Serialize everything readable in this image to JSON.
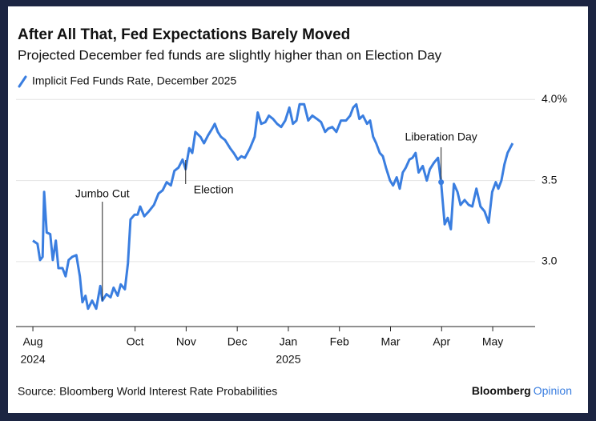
{
  "chart_data": {
    "type": "line",
    "title": "After All That, Fed Expectations Barely Moved",
    "subtitle": "Projected December fed funds are slightly higher than on Election Day",
    "source": "Source: Bloomberg World Interest Rate Probabilities",
    "brand": "Bloomberg",
    "brand_suffix": "Opinion",
    "xlim": [
      -0.33,
      9.83
    ],
    "xticks": [
      {
        "value": 0,
        "label": "Aug"
      },
      {
        "value": 2,
        "label": "Oct"
      },
      {
        "value": 3,
        "label": "Nov"
      },
      {
        "value": 4,
        "label": "Dec"
      },
      {
        "value": 5,
        "label": "Jan"
      },
      {
        "value": 6,
        "label": "Feb"
      },
      {
        "value": 7,
        "label": "Mar"
      },
      {
        "value": 8,
        "label": "Apr"
      },
      {
        "value": 9,
        "label": "May"
      }
    ],
    "x_year_labels": [
      {
        "value": 0,
        "label": "2024"
      },
      {
        "value": 5,
        "label": "2025"
      }
    ],
    "ylim": [
      2.6,
      4.1
    ],
    "yticks": [
      {
        "value": 3,
        "label": "3.0"
      },
      3.5,
      {
        "value": 4,
        "label": "4.0%"
      }
    ],
    "grid": true,
    "annotations": [
      {
        "label": "Jumbo Cut",
        "x": 1.36
      },
      {
        "label": "Election",
        "x": 2.99
      },
      {
        "label": "Liberation Day",
        "x": 7.99
      }
    ],
    "series": [
      {
        "name": "Implicit Fed Funds Rate, December 2025",
        "color": "#3a7ee0",
        "x": [
          0,
          0.09,
          0.14,
          0.19,
          0.22,
          0.27,
          0.34,
          0.39,
          0.45,
          0.5,
          0.58,
          0.64,
          0.7,
          0.77,
          0.85,
          0.92,
          0.97,
          1.03,
          1.08,
          1.16,
          1.24,
          1.32,
          1.36,
          1.44,
          1.52,
          1.58,
          1.66,
          1.72,
          1.8,
          1.86,
          1.91,
          1.99,
          2.05,
          2.1,
          2.18,
          2.27,
          2.37,
          2.46,
          2.54,
          2.62,
          2.7,
          2.77,
          2.85,
          2.93,
          2.99,
          3.06,
          3.12,
          3.18,
          3.28,
          3.35,
          3.43,
          3.51,
          3.56,
          3.62,
          3.68,
          3.76,
          3.86,
          3.93,
          4.01,
          4.08,
          4.15,
          4.25,
          4.34,
          4.4,
          4.47,
          4.55,
          4.62,
          4.7,
          4.78,
          4.86,
          4.94,
          5.02,
          5.09,
          5.16,
          5.22,
          5.31,
          5.39,
          5.47,
          5.56,
          5.64,
          5.72,
          5.78,
          5.86,
          5.94,
          6.03,
          6.13,
          6.21,
          6.27,
          6.33,
          6.39,
          6.46,
          6.54,
          6.6,
          6.66,
          6.72,
          6.79,
          6.85,
          6.91,
          6.99,
          7.05,
          7.12,
          7.18,
          7.24,
          7.3,
          7.37,
          7.43,
          7.49,
          7.55,
          7.63,
          7.71,
          7.77,
          7.85,
          7.93,
          7.99,
          8.06,
          8.12,
          8.18,
          8.24,
          8.31,
          8.37,
          8.45,
          8.53,
          8.6,
          8.68,
          8.76,
          8.84,
          8.92,
          8.99,
          9.06,
          9.11,
          9.17,
          9.23,
          9.29,
          9.39
        ],
        "values": [
          3.13,
          3.11,
          3.01,
          3.03,
          3.43,
          3.18,
          3.17,
          3.01,
          3.13,
          2.96,
          2.96,
          2.91,
          3.01,
          3.03,
          3.04,
          2.91,
          2.75,
          2.79,
          2.71,
          2.76,
          2.71,
          2.85,
          2.76,
          2.8,
          2.78,
          2.84,
          2.79,
          2.86,
          2.83,
          2.99,
          3.26,
          3.29,
          3.29,
          3.34,
          3.28,
          3.31,
          3.35,
          3.42,
          3.44,
          3.49,
          3.47,
          3.56,
          3.58,
          3.63,
          3.57,
          3.7,
          3.67,
          3.8,
          3.77,
          3.73,
          3.78,
          3.82,
          3.85,
          3.8,
          3.77,
          3.75,
          3.7,
          3.67,
          3.63,
          3.65,
          3.64,
          3.7,
          3.77,
          3.92,
          3.85,
          3.86,
          3.9,
          3.88,
          3.85,
          3.83,
          3.87,
          3.95,
          3.85,
          3.87,
          3.97,
          3.97,
          3.87,
          3.9,
          3.88,
          3.86,
          3.8,
          3.82,
          3.83,
          3.8,
          3.87,
          3.87,
          3.9,
          3.95,
          3.97,
          3.88,
          3.9,
          3.85,
          3.87,
          3.77,
          3.73,
          3.67,
          3.65,
          3.58,
          3.5,
          3.47,
          3.52,
          3.45,
          3.55,
          3.58,
          3.63,
          3.64,
          3.67,
          3.55,
          3.59,
          3.5,
          3.57,
          3.61,
          3.64,
          3.49,
          3.23,
          3.27,
          3.2,
          3.48,
          3.43,
          3.35,
          3.38,
          3.35,
          3.34,
          3.45,
          3.34,
          3.31,
          3.24,
          3.43,
          3.49,
          3.45,
          3.5,
          3.6,
          3.67,
          3.73
        ]
      }
    ]
  }
}
